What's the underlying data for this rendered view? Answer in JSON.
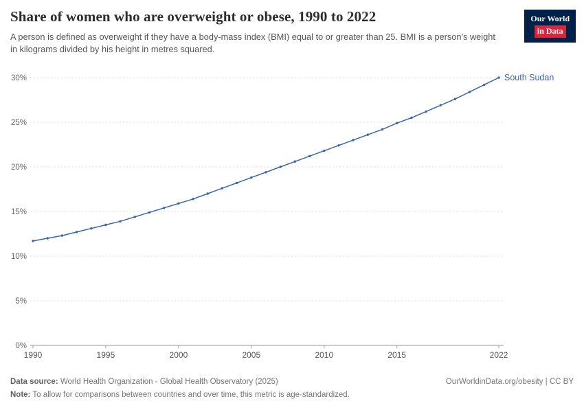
{
  "header": {
    "title": "Share of women who are overweight or obese, 1990 to 2022",
    "subtitle": "A person is defined as overweight if they have a body-mass index (BMI) equal to or greater than 25. BMI is a person's weight in kilograms divided by his height in metres squared.",
    "logo_line1": "Our World",
    "logo_line2": "in Data"
  },
  "colors": {
    "brand_navy": "#002147",
    "brand_red": "#d7263d",
    "series_blue": "#3d649d",
    "gridline": "#dcdcdc",
    "axis": "#9a9a9a"
  },
  "chart_data": {
    "type": "line",
    "title": "Share of women who are overweight or obese, 1990 to 2022",
    "xlabel": "",
    "ylabel": "",
    "grid": true,
    "legend": "end-of-line-label",
    "ylim": [
      0,
      30
    ],
    "yticks": [
      0,
      5,
      10,
      15,
      20,
      25,
      30
    ],
    "ytick_suffix": "%",
    "xticks": [
      1990,
      1995,
      2000,
      2005,
      2010,
      2015,
      2022
    ],
    "x": [
      1990,
      1991,
      1992,
      1993,
      1994,
      1995,
      1996,
      1997,
      1998,
      1999,
      2000,
      2001,
      2002,
      2003,
      2004,
      2005,
      2006,
      2007,
      2008,
      2009,
      2010,
      2011,
      2012,
      2013,
      2014,
      2015,
      2016,
      2017,
      2018,
      2019,
      2020,
      2021,
      2022
    ],
    "series": [
      {
        "name": "South Sudan",
        "color": "#3d649d",
        "values": [
          11.7,
          12.0,
          12.3,
          12.7,
          13.1,
          13.5,
          13.9,
          14.4,
          14.9,
          15.4,
          15.9,
          16.4,
          17.0,
          17.6,
          18.2,
          18.8,
          19.4,
          20.0,
          20.6,
          21.2,
          21.8,
          22.4,
          23.0,
          23.6,
          24.2,
          24.9,
          25.5,
          26.2,
          26.9,
          27.6,
          28.4,
          29.2,
          30.0
        ]
      }
    ]
  },
  "footer": {
    "datasource_label": "Data source:",
    "datasource_text": "World Health Organization - Global Health Observatory (2025)",
    "note_label": "Note:",
    "note_text": "To allow for comparisons between countries and over time, this metric is age-standardized.",
    "link": "OurWorldinData.org/obesity | CC BY"
  }
}
